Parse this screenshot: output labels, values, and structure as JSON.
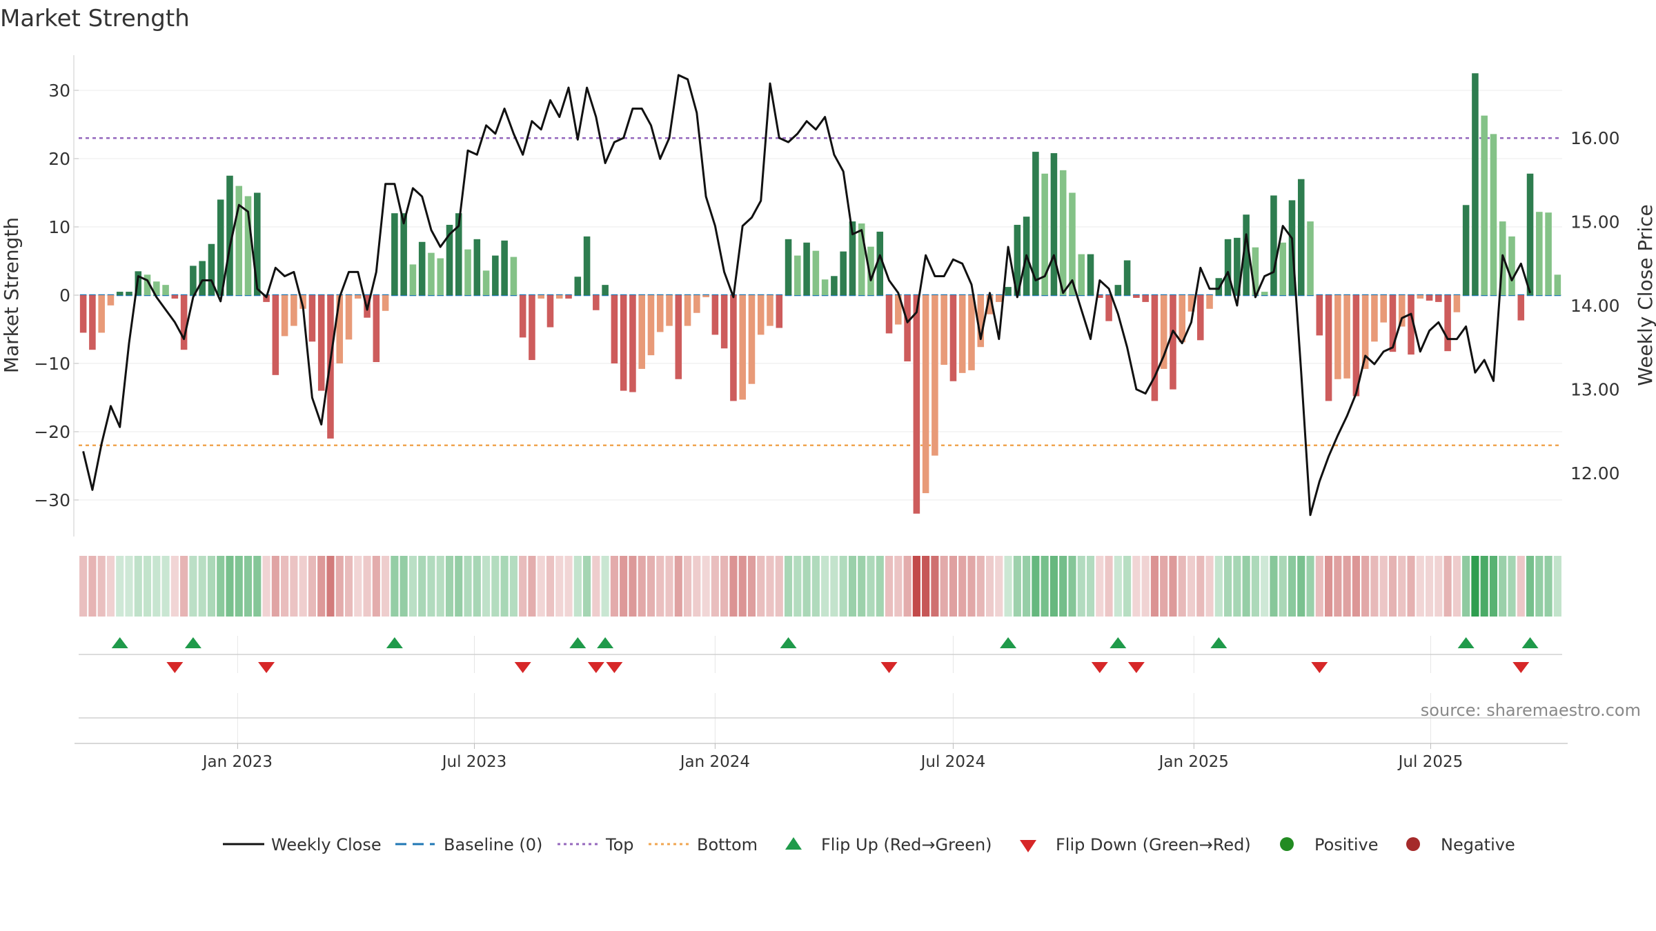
{
  "chart_data": {
    "title": "Market Strength",
    "type": "bar+line",
    "grid": true,
    "source_label": "source: sharemaestro.com",
    "left_axis": {
      "label": "Market Strength",
      "ylim": [
        -35,
        36
      ],
      "ticks": [
        -30,
        -20,
        -10,
        0,
        10,
        20,
        30
      ],
      "tick_labels": [
        "−30",
        "−20",
        "−10",
        "0",
        "10",
        "20",
        "30"
      ]
    },
    "right_axis": {
      "label": "Weekly Close Price",
      "ylim": [
        11.3,
        17.0
      ],
      "ticks": [
        12,
        13,
        14,
        15,
        16
      ],
      "tick_labels": [
        "12.00",
        "13.00",
        "14.00",
        "15.00",
        "16.00"
      ]
    },
    "x_axis": {
      "start": "2022-09-05",
      "tick_labels": [
        "Jan 2023",
        "Jul 2023",
        "Jan 2024",
        "Jul 2024",
        "Jan 2025",
        "Jul 2025"
      ],
      "tick_dates": [
        "2023-01-01",
        "2023-07-01",
        "2024-01-01",
        "2024-07-01",
        "2025-01-01",
        "2025-07-01"
      ]
    },
    "reference_lines": {
      "top": 23,
      "bottom": -22,
      "baseline": 0
    },
    "strength": [
      -5.5,
      -8,
      -5.5,
      -1.5,
      0.5,
      0.5,
      3.5,
      3,
      2,
      1.5,
      -0.5,
      -8,
      4.3,
      5,
      7.5,
      14,
      17.5,
      16,
      14.5,
      15,
      -1,
      -11.7,
      -6,
      -4.5,
      -2,
      -6.8,
      -14,
      -21,
      -10,
      -6.5,
      -0.5,
      -3.3,
      -9.8,
      -2.3,
      12,
      12,
      4.5,
      7.8,
      6.2,
      5.4,
      10.3,
      12,
      6.7,
      8.2,
      3.6,
      5.8,
      8,
      5.6,
      -6.2,
      -9.5,
      -0.5,
      -4.7,
      -0.5,
      -0.5,
      2.7,
      8.6,
      -2.2,
      1.5,
      -10,
      -14,
      -14.2,
      -10.8,
      -8.8,
      -5.4,
      -4.5,
      -12.3,
      -4.5,
      -2.6,
      -0.3,
      -5.8,
      -7.8,
      -15.5,
      -15.3,
      -13,
      -5.8,
      -4.5,
      -4.8,
      8.2,
      5.8,
      7.7,
      6.5,
      2.3,
      2.8,
      6.4,
      10.8,
      10.5,
      7.1,
      9.3,
      -5.6,
      -4.3,
      -9.7,
      -32,
      -29,
      -23.5,
      -10.2,
      -12.6,
      -11.4,
      -11,
      -7.6,
      -2.8,
      -1,
      1.2,
      10.3,
      11.5,
      21,
      17.8,
      20.8,
      18.3,
      15,
      6,
      6,
      -0.4,
      -3.8,
      1.5,
      5.1,
      -0.4,
      -1,
      -15.5,
      -10.8,
      -13.8,
      -6.9,
      -2.4,
      -6.6,
      -2,
      2.5,
      8.2,
      8.4,
      11.8,
      7,
      0.5,
      14.6,
      7.7,
      13.9,
      17,
      10.8,
      -5.9,
      -15.5,
      -12.3,
      -12.2,
      -14.8,
      -10.8,
      -6.8,
      -4,
      -8.3,
      -4.6,
      -8.7,
      -0.5,
      -0.8,
      -1,
      -8.2,
      -2.5,
      13.2,
      32.5,
      26.3,
      23.6,
      10.8,
      8.6,
      -3.7,
      17.8,
      12.2,
      12.1,
      3
    ],
    "weekly_close": [
      12.26,
      11.8,
      12.35,
      12.8,
      12.55,
      13.55,
      14.35,
      14.3,
      14.1,
      13.95,
      13.8,
      13.6,
      14.1,
      14.3,
      14.3,
      14.05,
      14.7,
      15.2,
      15.12,
      14.2,
      14.1,
      14.45,
      14.35,
      14.4,
      13.98,
      12.9,
      12.58,
      13.35,
      14.1,
      14.4,
      14.4,
      13.95,
      14.4,
      15.45,
      15.45,
      14.98,
      15.4,
      15.3,
      14.9,
      14.7,
      14.85,
      14.95,
      15.85,
      15.8,
      16.15,
      16.05,
      16.35,
      16.05,
      15.8,
      16.2,
      16.1,
      16.45,
      16.25,
      16.6,
      15.98,
      16.6,
      16.25,
      15.7,
      15.95,
      16.0,
      16.35,
      16.35,
      16.15,
      15.75,
      16.0,
      16.75,
      16.7,
      16.3,
      15.3,
      14.95,
      14.4,
      14.1,
      14.95,
      15.05,
      15.25,
      16.65,
      16.0,
      15.95,
      16.05,
      16.2,
      16.1,
      16.25,
      15.8,
      15.6,
      14.85,
      14.9,
      14.3,
      14.6,
      14.3,
      14.15,
      13.8,
      13.92,
      14.6,
      14.35,
      14.35,
      14.55,
      14.5,
      14.25,
      13.6,
      14.15,
      13.6,
      14.7,
      14.1,
      14.6,
      14.3,
      14.35,
      14.6,
      14.15,
      14.3,
      13.95,
      13.6,
      14.3,
      14.2,
      13.9,
      13.5,
      13.0,
      12.95,
      13.15,
      13.4,
      13.7,
      13.55,
      13.8,
      14.45,
      14.2,
      14.2,
      14.4,
      14.0,
      14.85,
      14.1,
      14.35,
      14.4,
      14.95,
      14.8,
      13.2,
      11.5,
      11.9,
      12.2,
      12.45,
      12.68,
      12.95,
      13.4,
      13.3,
      13.45,
      13.5,
      13.85,
      13.9,
      13.45,
      13.7,
      13.8,
      13.6,
      13.6,
      13.75,
      13.2,
      13.35,
      13.1,
      14.6,
      14.3,
      14.5,
      14.15
    ]
  },
  "legend": {
    "weekly_close": "Weekly Close",
    "baseline": "Baseline (0)",
    "top": "Top",
    "bottom": "Bottom",
    "flip_up": "Flip Up (Red→Green)",
    "flip_down": "Flip Down (Green→Red)",
    "positive": "Positive",
    "negative": "Negative"
  },
  "colors": {
    "pos_strong": "#2e7d4f",
    "pos_light": "#84c287",
    "neg_strong": "#cd5c5c",
    "neg_light": "#e89a78",
    "line": "#111111",
    "baseline": "#1f77b4",
    "top": "#9467bd",
    "bottom": "#f0a550",
    "flip_up": "#1f9a4a",
    "flip_down": "#d62728",
    "positive_dot": "#228b22",
    "negative_dot": "#a52a2a"
  }
}
